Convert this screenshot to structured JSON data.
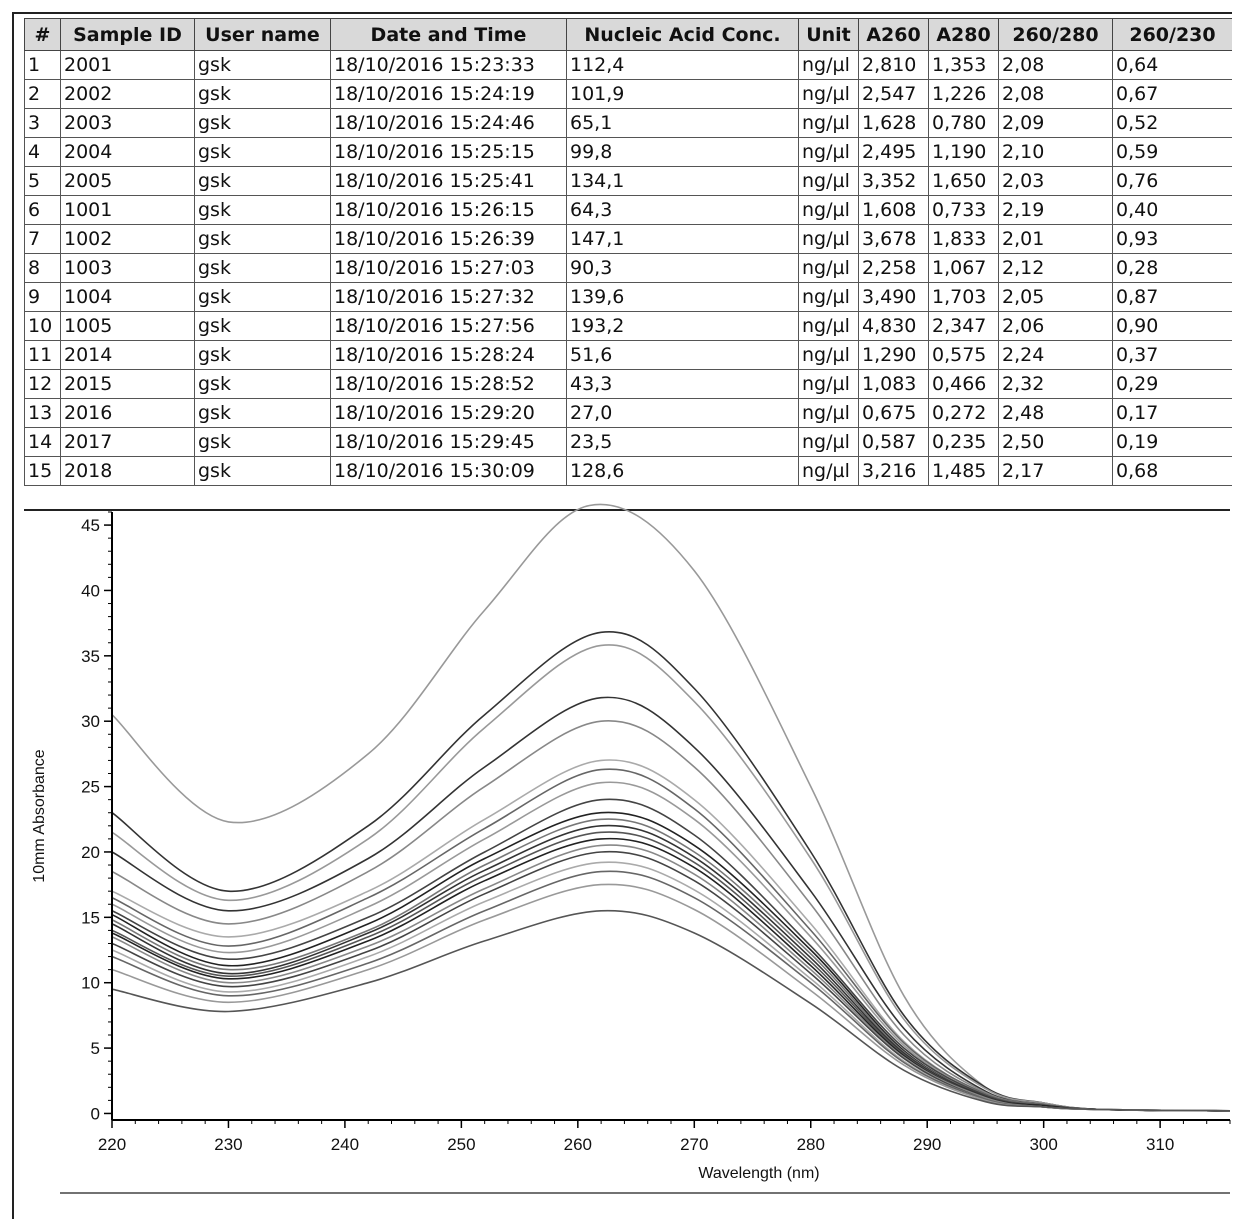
{
  "table": {
    "headers": [
      "#",
      "Sample ID",
      "User name",
      "Date and Time",
      "Nucleic Acid Conc.",
      "Unit",
      "A260",
      "A280",
      "260/280",
      "260/230"
    ],
    "rows": [
      [
        "1",
        "2001",
        "gsk",
        "18/10/2016 15:23:33",
        "112,4",
        "ng/µl",
        "2,810",
        "1,353",
        "2,08",
        "0,64"
      ],
      [
        "2",
        "2002",
        "gsk",
        "18/10/2016 15:24:19",
        "101,9",
        "ng/µl",
        "2,547",
        "1,226",
        "2,08",
        "0,67"
      ],
      [
        "3",
        "2003",
        "gsk",
        "18/10/2016 15:24:46",
        "65,1",
        "ng/µl",
        "1,628",
        "0,780",
        "2,09",
        "0,52"
      ],
      [
        "4",
        "2004",
        "gsk",
        "18/10/2016 15:25:15",
        "99,8",
        "ng/µl",
        "2,495",
        "1,190",
        "2,10",
        "0,59"
      ],
      [
        "5",
        "2005",
        "gsk",
        "18/10/2016 15:25:41",
        "134,1",
        "ng/µl",
        "3,352",
        "1,650",
        "2,03",
        "0,76"
      ],
      [
        "6",
        "1001",
        "gsk",
        "18/10/2016 15:26:15",
        "64,3",
        "ng/µl",
        "1,608",
        "0,733",
        "2,19",
        "0,40"
      ],
      [
        "7",
        "1002",
        "gsk",
        "18/10/2016 15:26:39",
        "147,1",
        "ng/µl",
        "3,678",
        "1,833",
        "2,01",
        "0,93"
      ],
      [
        "8",
        "1003",
        "gsk",
        "18/10/2016 15:27:03",
        "90,3",
        "ng/µl",
        "2,258",
        "1,067",
        "2,12",
        "0,28"
      ],
      [
        "9",
        "1004",
        "gsk",
        "18/10/2016 15:27:32",
        "139,6",
        "ng/µl",
        "3,490",
        "1,703",
        "2,05",
        "0,87"
      ],
      [
        "10",
        "1005",
        "gsk",
        "18/10/2016 15:27:56",
        "193,2",
        "ng/µl",
        "4,830",
        "2,347",
        "2,06",
        "0,90"
      ],
      [
        "11",
        "2014",
        "gsk",
        "18/10/2016 15:28:24",
        "51,6",
        "ng/µl",
        "1,290",
        "0,575",
        "2,24",
        "0,37"
      ],
      [
        "12",
        "2015",
        "gsk",
        "18/10/2016 15:28:52",
        "43,3",
        "ng/µl",
        "1,083",
        "0,466",
        "2,32",
        "0,29"
      ],
      [
        "13",
        "2016",
        "gsk",
        "18/10/2016 15:29:20",
        "27,0",
        "ng/µl",
        "0,675",
        "0,272",
        "2,48",
        "0,17"
      ],
      [
        "14",
        "2017",
        "gsk",
        "18/10/2016 15:29:45",
        "23,5",
        "ng/µl",
        "0,587",
        "0,235",
        "2,50",
        "0,19"
      ],
      [
        "15",
        "2018",
        "gsk",
        "18/10/2016 15:30:09",
        "128,6",
        "ng/µl",
        "3,216",
        "1,485",
        "2,17",
        "0,68"
      ]
    ]
  },
  "chart_data": {
    "type": "line",
    "xlabel": "Wavelength (nm)",
    "ylabel": "10mm Absorbance",
    "xlim": [
      220,
      316
    ],
    "ylim": [
      -0.5,
      46
    ],
    "xticks": [
      220,
      230,
      240,
      250,
      260,
      270,
      280,
      290,
      300,
      310
    ],
    "yticks": [
      0,
      5,
      10,
      15,
      20,
      25,
      30,
      35,
      40,
      45
    ],
    "grid": false,
    "series": [
      {
        "color": "#999999",
        "x": [
          220,
          230,
          242,
          252,
          261,
          270,
          280,
          288,
          295,
          300,
          305,
          316
        ],
        "y": [
          30.5,
          22.3,
          27.5,
          38.5,
          46.5,
          41.5,
          25.0,
          9.0,
          2.0,
          0.8,
          0.3,
          0.2
        ]
      },
      {
        "color": "#333333",
        "x": [
          220,
          230,
          242,
          252,
          262,
          270,
          280,
          288,
          295,
          300,
          305,
          316
        ],
        "y": [
          23.0,
          17.0,
          22.0,
          30.5,
          36.8,
          32.5,
          20.0,
          7.5,
          2.0,
          0.8,
          0.3,
          0.2
        ]
      },
      {
        "color": "#999999",
        "x": [
          220,
          230,
          242,
          252,
          262,
          270,
          280,
          288,
          295,
          300,
          305,
          316
        ],
        "y": [
          21.5,
          16.3,
          21.0,
          29.5,
          35.8,
          31.5,
          19.5,
          7.2,
          1.9,
          0.8,
          0.3,
          0.2
        ]
      },
      {
        "color": "#333333",
        "x": [
          220,
          230,
          242,
          252,
          262,
          270,
          280,
          288,
          295,
          300,
          305,
          316
        ],
        "y": [
          20.0,
          15.5,
          19.5,
          26.5,
          31.8,
          28.0,
          17.0,
          6.5,
          1.7,
          0.7,
          0.3,
          0.2
        ]
      },
      {
        "color": "#888888",
        "x": [
          220,
          230,
          242,
          252,
          262,
          270,
          280,
          288,
          295,
          300,
          305,
          316
        ],
        "y": [
          18.5,
          14.5,
          18.5,
          25.0,
          30.0,
          26.5,
          16.0,
          6.0,
          1.6,
          0.7,
          0.3,
          0.2
        ]
      },
      {
        "color": "#aaaaaa",
        "x": [
          220,
          230,
          242,
          252,
          262,
          270,
          280,
          288,
          295,
          300,
          305,
          316
        ],
        "y": [
          17.0,
          13.5,
          17.0,
          22.5,
          27.0,
          24.0,
          14.5,
          5.5,
          1.5,
          0.7,
          0.3,
          0.2
        ]
      },
      {
        "color": "#666666",
        "x": [
          220,
          230,
          242,
          252,
          262,
          270,
          280,
          288,
          295,
          300,
          305,
          316
        ],
        "y": [
          16.5,
          12.8,
          16.5,
          21.8,
          26.3,
          23.3,
          14.0,
          5.4,
          1.5,
          0.7,
          0.3,
          0.2
        ]
      },
      {
        "color": "#999999",
        "x": [
          220,
          230,
          242,
          252,
          262,
          270,
          280,
          288,
          295,
          300,
          305,
          316
        ],
        "y": [
          16.0,
          12.3,
          15.8,
          21.0,
          25.3,
          22.5,
          13.5,
          5.2,
          1.4,
          0.6,
          0.3,
          0.2
        ]
      },
      {
        "color": "#444444",
        "x": [
          220,
          230,
          242,
          252,
          262,
          270,
          280,
          288,
          295,
          300,
          305,
          316
        ],
        "y": [
          15.5,
          11.8,
          15.0,
          20.0,
          24.0,
          21.3,
          12.8,
          5.0,
          1.4,
          0.6,
          0.3,
          0.2
        ]
      },
      {
        "color": "#222222",
        "x": [
          220,
          230,
          242,
          252,
          262,
          270,
          280,
          288,
          295,
          300,
          305,
          316
        ],
        "y": [
          15.2,
          11.3,
          14.5,
          19.5,
          23.0,
          20.5,
          12.5,
          4.8,
          1.3,
          0.6,
          0.3,
          0.2
        ]
      },
      {
        "color": "#777777",
        "x": [
          220,
          230,
          242,
          252,
          262,
          270,
          280,
          288,
          295,
          300,
          305,
          316
        ],
        "y": [
          14.8,
          11.0,
          14.0,
          19.0,
          22.5,
          20.0,
          12.2,
          4.7,
          1.3,
          0.6,
          0.3,
          0.2
        ]
      },
      {
        "color": "#333333",
        "x": [
          220,
          230,
          242,
          252,
          262,
          270,
          280,
          288,
          295,
          300,
          305,
          316
        ],
        "y": [
          14.5,
          10.7,
          13.8,
          18.6,
          22.0,
          19.6,
          11.9,
          4.6,
          1.3,
          0.6,
          0.3,
          0.2
        ]
      },
      {
        "color": "#555555",
        "x": [
          220,
          230,
          242,
          252,
          262,
          270,
          280,
          288,
          295,
          300,
          305,
          316
        ],
        "y": [
          14.0,
          10.5,
          13.5,
          18.2,
          21.5,
          19.2,
          11.6,
          4.5,
          1.2,
          0.6,
          0.3,
          0.2
        ]
      },
      {
        "color": "#222222",
        "x": [
          220,
          230,
          242,
          252,
          262,
          270,
          280,
          288,
          295,
          300,
          305,
          316
        ],
        "y": [
          13.8,
          10.3,
          13.2,
          17.8,
          21.0,
          18.8,
          11.3,
          4.4,
          1.2,
          0.6,
          0.3,
          0.2
        ]
      },
      {
        "color": "#888888",
        "x": [
          220,
          230,
          242,
          252,
          262,
          270,
          280,
          288,
          295,
          300,
          305,
          316
        ],
        "y": [
          13.5,
          10.0,
          12.8,
          17.2,
          20.5,
          18.3,
          11.0,
          4.3,
          1.2,
          0.5,
          0.3,
          0.2
        ]
      },
      {
        "color": "#444444",
        "x": [
          220,
          230,
          242,
          252,
          262,
          270,
          280,
          288,
          295,
          300,
          305,
          316
        ],
        "y": [
          13.0,
          9.7,
          12.4,
          16.8,
          20.0,
          17.8,
          10.7,
          4.2,
          1.1,
          0.5,
          0.3,
          0.2
        ]
      },
      {
        "color": "#aaaaaa",
        "x": [
          220,
          230,
          242,
          252,
          262,
          270,
          280,
          288,
          295,
          300,
          305,
          316
        ],
        "y": [
          12.5,
          9.3,
          12.0,
          16.2,
          19.2,
          17.1,
          10.3,
          4.0,
          1.1,
          0.5,
          0.3,
          0.2
        ]
      },
      {
        "color": "#666666",
        "x": [
          220,
          230,
          242,
          252,
          262,
          270,
          280,
          288,
          295,
          300,
          305,
          316
        ],
        "y": [
          12.0,
          9.0,
          11.5,
          15.5,
          18.5,
          16.5,
          10.0,
          3.9,
          1.1,
          0.5,
          0.3,
          0.2
        ]
      },
      {
        "color": "#999999",
        "x": [
          220,
          230,
          242,
          252,
          262,
          270,
          280,
          288,
          295,
          300,
          305,
          316
        ],
        "y": [
          11.0,
          8.5,
          11.0,
          14.8,
          17.5,
          15.6,
          9.4,
          3.7,
          1.0,
          0.5,
          0.3,
          0.2
        ]
      },
      {
        "color": "#555555",
        "x": [
          220,
          230,
          242,
          252,
          262,
          270,
          280,
          288,
          295,
          300,
          305,
          316
        ],
        "y": [
          9.5,
          7.8,
          10.0,
          13.2,
          15.5,
          13.8,
          8.4,
          3.3,
          0.9,
          0.5,
          0.3,
          0.2
        ]
      }
    ]
  }
}
